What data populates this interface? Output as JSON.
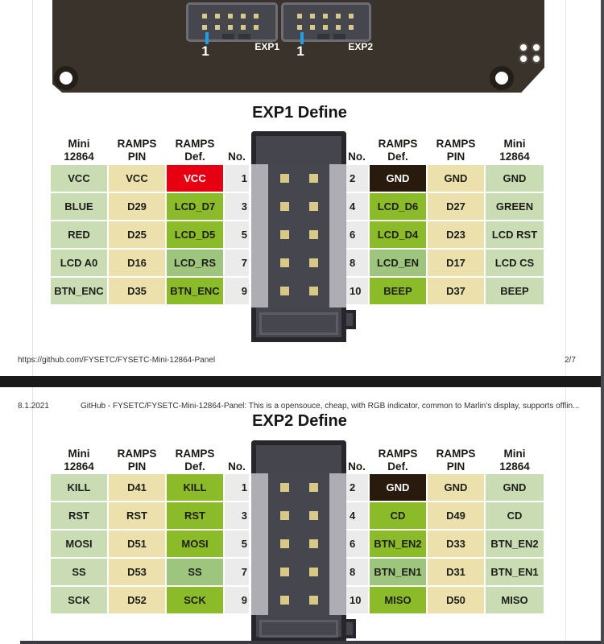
{
  "pcb": {
    "exp1_label": "EXP1",
    "exp2_label": "EXP2",
    "pin1_marker": "1"
  },
  "doc": {
    "footer_url": "https://github.com/FYSETC/FYSETC-Mini-12864-Panel",
    "footer_page": "2/7",
    "header_date": "8.1.2021",
    "header_title": "GitHub - FYSETC/FYSETC-Mini-12864-Panel: This is a opensouce, cheap, with RGB indicator, common to Marlin's display, supports offlin..."
  },
  "exp1": {
    "title": "EXP1 Define",
    "headers": [
      [
        "Mini",
        "12864"
      ],
      [
        "RAMPS",
        "PIN"
      ],
      [
        "RAMPS",
        "Def."
      ],
      [
        "No."
      ],
      [
        "No."
      ],
      [
        "RAMPS",
        "Def."
      ],
      [
        "RAMPS",
        "PIN"
      ],
      [
        "Mini",
        "12864"
      ]
    ],
    "rows": [
      {
        "left": [
          {
            "t": "VCC",
            "c": "sage"
          },
          {
            "t": "VCC",
            "c": "tan"
          },
          {
            "t": "VCC",
            "c": "red"
          }
        ],
        "lno": "1",
        "rno": "2",
        "right": [
          {
            "t": "GND",
            "c": "dark"
          },
          {
            "t": "GND",
            "c": "tan"
          },
          {
            "t": "GND",
            "c": "sage"
          }
        ]
      },
      {
        "left": [
          {
            "t": "BLUE",
            "c": "sage"
          },
          {
            "t": "D29",
            "c": "tan"
          },
          {
            "t": "LCD_D7",
            "c": "green"
          }
        ],
        "lno": "3",
        "rno": "4",
        "right": [
          {
            "t": "LCD_D6",
            "c": "green"
          },
          {
            "t": "D27",
            "c": "tan"
          },
          {
            "t": "GREEN",
            "c": "sage"
          }
        ]
      },
      {
        "left": [
          {
            "t": "RED",
            "c": "sage"
          },
          {
            "t": "D25",
            "c": "tan"
          },
          {
            "t": "LCD_D5",
            "c": "green"
          }
        ],
        "lno": "5",
        "rno": "6",
        "right": [
          {
            "t": "LCD_D4",
            "c": "green"
          },
          {
            "t": "D23",
            "c": "tan"
          },
          {
            "t": "LCD RST",
            "c": "sage"
          }
        ]
      },
      {
        "left": [
          {
            "t": "LCD A0",
            "c": "sage"
          },
          {
            "t": "D16",
            "c": "tan"
          },
          {
            "t": "LCD_RS",
            "c": "mgreen"
          }
        ],
        "lno": "7",
        "rno": "8",
        "right": [
          {
            "t": "LCD_EN",
            "c": "mgreen"
          },
          {
            "t": "D17",
            "c": "tan"
          },
          {
            "t": "LCD CS",
            "c": "sage"
          }
        ]
      },
      {
        "left": [
          {
            "t": "BTN_ENC",
            "c": "sage"
          },
          {
            "t": "D35",
            "c": "tan"
          },
          {
            "t": "BTN_ENC",
            "c": "green"
          }
        ],
        "lno": "9",
        "rno": "10",
        "right": [
          {
            "t": "BEEP",
            "c": "green"
          },
          {
            "t": "D37",
            "c": "tan"
          },
          {
            "t": "BEEP",
            "c": "sage"
          }
        ]
      }
    ]
  },
  "exp2": {
    "title": "EXP2 Define",
    "headers": [
      [
        "Mini",
        "12864"
      ],
      [
        "RAMPS",
        "PIN"
      ],
      [
        "RAMPS",
        "Def."
      ],
      [
        "No."
      ],
      [
        "No."
      ],
      [
        "RAMPS",
        "Def."
      ],
      [
        "RAMPS",
        "PIN"
      ],
      [
        "Mini",
        "12864"
      ]
    ],
    "rows": [
      {
        "left": [
          {
            "t": "KILL",
            "c": "sage"
          },
          {
            "t": "D41",
            "c": "tan"
          },
          {
            "t": "KILL",
            "c": "green"
          }
        ],
        "lno": "1",
        "rno": "2",
        "right": [
          {
            "t": "GND",
            "c": "dark"
          },
          {
            "t": "GND",
            "c": "tan"
          },
          {
            "t": "GND",
            "c": "sage"
          }
        ]
      },
      {
        "left": [
          {
            "t": "RST",
            "c": "sage"
          },
          {
            "t": "RST",
            "c": "tan"
          },
          {
            "t": "RST",
            "c": "green"
          }
        ],
        "lno": "3",
        "rno": "4",
        "right": [
          {
            "t": "CD",
            "c": "green"
          },
          {
            "t": "D49",
            "c": "tan"
          },
          {
            "t": "CD",
            "c": "sage"
          }
        ]
      },
      {
        "left": [
          {
            "t": "MOSI",
            "c": "sage"
          },
          {
            "t": "D51",
            "c": "tan"
          },
          {
            "t": "MOSI",
            "c": "green"
          }
        ],
        "lno": "5",
        "rno": "6",
        "right": [
          {
            "t": "BTN_EN2",
            "c": "green"
          },
          {
            "t": "D33",
            "c": "tan"
          },
          {
            "t": "BTN_EN2",
            "c": "sage"
          }
        ]
      },
      {
        "left": [
          {
            "t": "SS",
            "c": "sage"
          },
          {
            "t": "D53",
            "c": "tan"
          },
          {
            "t": "SS",
            "c": "mgreen"
          }
        ],
        "lno": "7",
        "rno": "8",
        "right": [
          {
            "t": "BTN_EN1",
            "c": "mgreen"
          },
          {
            "t": "D31",
            "c": "tan"
          },
          {
            "t": "BTN_EN1",
            "c": "sage"
          }
        ]
      },
      {
        "left": [
          {
            "t": "SCK",
            "c": "sage"
          },
          {
            "t": "D52",
            "c": "tan"
          },
          {
            "t": "SCK",
            "c": "green"
          }
        ],
        "lno": "9",
        "rno": "10",
        "right": [
          {
            "t": "MISO",
            "c": "green"
          },
          {
            "t": "D50",
            "c": "tan"
          },
          {
            "t": "MISO",
            "c": "sage"
          }
        ]
      }
    ]
  },
  "colors": {
    "sage": "#c9dcb3",
    "tan": "#ece0ad",
    "red": "#e60012",
    "green": "#8cbb2a",
    "mgreen": "#9dc57e",
    "dark": "#281a0d",
    "number_bg": "#ebebeb",
    "pcb": "#3a332c",
    "pin": "#d9c988",
    "accent_blue": "#1fa0e6"
  }
}
